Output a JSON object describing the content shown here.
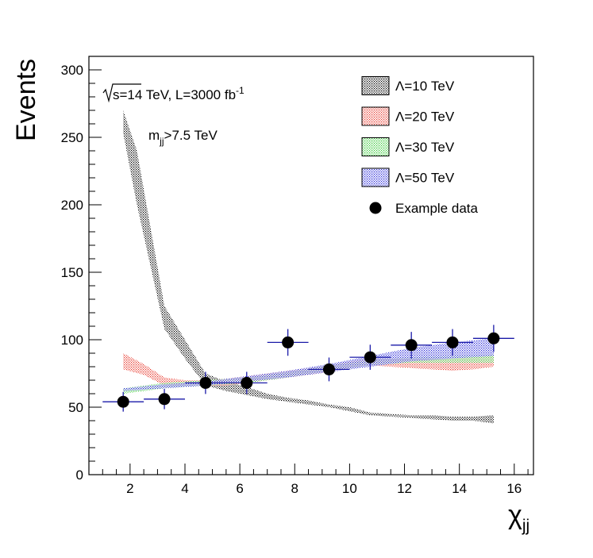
{
  "chart_data": {
    "type": "scatter",
    "title": "",
    "xlabel": "χ",
    "xlabel_sub": "jj",
    "ylabel": "Events",
    "xlim": [
      0.5,
      16.7
    ],
    "ylim": [
      0,
      310
    ],
    "xticks": [
      2,
      4,
      6,
      8,
      10,
      12,
      14,
      16
    ],
    "yticks": [
      0,
      50,
      100,
      150,
      200,
      250,
      300
    ],
    "xtick_labels": [
      "2",
      "4",
      "6",
      "8",
      "10",
      "12",
      "14",
      "16"
    ],
    "ytick_labels": [
      "0",
      "50",
      "100",
      "150",
      "200",
      "250",
      "300"
    ],
    "annotations": {
      "energy_prefix": "s=14 TeV, L=3000 fb",
      "energy_sup": "-1",
      "mass_prefix": "m",
      "mass_sub": "jj",
      "mass_suffix": ">7.5 TeV"
    },
    "series": [
      {
        "name": "Λ=10 TeV",
        "kind": "band",
        "color": "#000000",
        "x": [
          1.75,
          2.25,
          3.25,
          4.0,
          4.75,
          5.5,
          6.25,
          7.0,
          7.75,
          8.5,
          9.25,
          10.0,
          10.75,
          11.5,
          12.25,
          13.0,
          13.75,
          14.5,
          15.25
        ],
        "lower": [
          253,
          200,
          108,
          86,
          66,
          62,
          59,
          56,
          54,
          52,
          50,
          47,
          44,
          43,
          42,
          41,
          40,
          40,
          38
        ],
        "upper": [
          270,
          240,
          125,
          100,
          75,
          69,
          65,
          60,
          57,
          55,
          52,
          50,
          46,
          45,
          44,
          44,
          43,
          43,
          44
        ]
      },
      {
        "name": "Λ=20 TeV",
        "kind": "band",
        "color": "#e83a2e",
        "x": [
          1.75,
          2.5,
          3.25,
          4.0,
          4.75,
          5.5,
          6.25,
          7.0,
          7.75,
          8.5,
          9.25,
          10.0,
          10.75,
          11.5,
          12.25,
          13.0,
          13.75,
          14.5,
          15.25
        ],
        "lower": [
          78,
          74,
          66,
          66,
          66,
          66,
          68,
          70,
          72,
          74,
          76,
          79,
          81,
          80,
          79,
          78,
          77,
          78,
          80
        ],
        "upper": [
          90,
          82,
          72,
          70,
          70,
          71,
          73,
          75,
          77,
          79,
          81,
          84,
          86,
          86,
          86,
          86,
          86,
          87,
          88
        ]
      },
      {
        "name": "Λ=30 TeV",
        "kind": "band",
        "color": "#3ac93a",
        "x": [
          1.75,
          3.25,
          4.75,
          6.25,
          7.75,
          9.25,
          10.75,
          12.25,
          13.75,
          15.25
        ],
        "lower": [
          60,
          64,
          66,
          68,
          72,
          77,
          81,
          83,
          83,
          83
        ],
        "upper": [
          64,
          68,
          70,
          72,
          76,
          81,
          85,
          87,
          88,
          89
        ]
      },
      {
        "name": "Λ=50 TeV",
        "kind": "band",
        "color": "#2b2bd8",
        "x": [
          1.75,
          3.25,
          4.75,
          6.25,
          7.75,
          9.25,
          10.75,
          12.25,
          13.75,
          15.25
        ],
        "lower": [
          62,
          64,
          66,
          69,
          72,
          76,
          80,
          84,
          86,
          88
        ],
        "upper": [
          64,
          67,
          69,
          73,
          77,
          82,
          88,
          94,
          98,
          101
        ]
      },
      {
        "name": "Example data",
        "kind": "points",
        "color": "#000000",
        "errorbar_color": "#1a1aa8",
        "x": [
          1.75,
          3.25,
          4.75,
          6.25,
          7.75,
          9.25,
          10.75,
          12.25,
          13.75,
          15.25
        ],
        "y": [
          54,
          56,
          68,
          68,
          98,
          78,
          87,
          96,
          98,
          101
        ],
        "xerr": [
          0.75,
          0.75,
          0.75,
          0.75,
          0.75,
          0.75,
          0.75,
          0.75,
          0.75,
          0.75
        ],
        "yerr": [
          7.3,
          7.5,
          8.2,
          8.2,
          9.9,
          8.8,
          9.3,
          9.8,
          9.9,
          10.0
        ]
      }
    ],
    "legend": {
      "position": "top-right",
      "entries": [
        {
          "label": "Λ=10 TeV",
          "type": "band",
          "color": "#000000"
        },
        {
          "label": "Λ=20 TeV",
          "type": "band",
          "color": "#e83a2e"
        },
        {
          "label": "Λ=30 TeV",
          "type": "band",
          "color": "#3ac93a"
        },
        {
          "label": "Λ=50 TeV",
          "type": "band",
          "color": "#2b2bd8"
        },
        {
          "label": "Example data",
          "type": "marker",
          "color": "#000000"
        }
      ]
    }
  }
}
